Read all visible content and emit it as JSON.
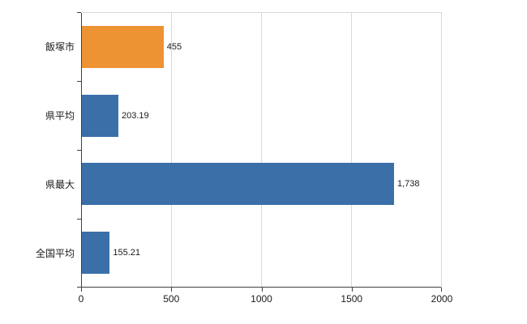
{
  "chart_data": {
    "type": "bar",
    "orientation": "horizontal",
    "title": "",
    "xlabel": "",
    "ylabel": "",
    "categories": [
      "飯塚市",
      "県平均",
      "県最大",
      "全国平均"
    ],
    "values": [
      455,
      203.19,
      1738,
      155.21
    ],
    "value_labels": [
      "455",
      "203.19",
      "1,738",
      "155.21"
    ],
    "bar_colors": [
      "#ed9333",
      "#3a6fa8",
      "#3a6fa8",
      "#3a6fa8"
    ],
    "x_ticks": [
      "0",
      "500",
      "1000",
      "1500",
      "2000"
    ],
    "xlim": [
      0,
      2000
    ],
    "grid": "vertical",
    "legend": "none",
    "colors": {
      "highlight_bar": "#ed9333",
      "default_bar": "#3a6fa8",
      "gridline": "#d9d9d9",
      "axis": "#404040",
      "background": "#ffffff",
      "text": "#1a1a1a"
    }
  }
}
